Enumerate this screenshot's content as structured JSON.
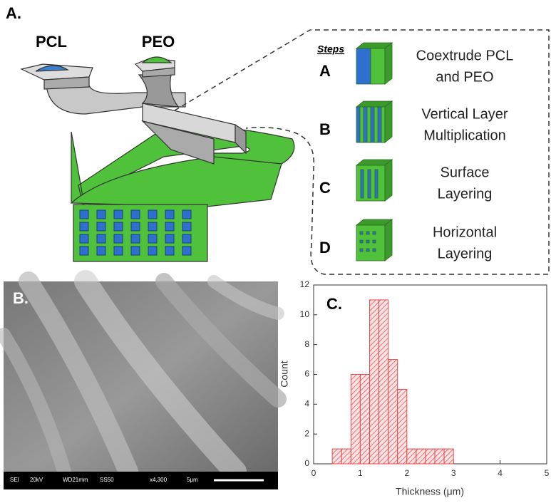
{
  "panel_a": {
    "label": "A.",
    "inputs": [
      "PCL",
      "PEO"
    ],
    "steps_heading": "Steps",
    "steps": [
      {
        "letter": "A",
        "lines": [
          "Coextrude PCL",
          "and PEO"
        ]
      },
      {
        "letter": "B",
        "lines": [
          "Vertical Layer",
          "Multiplication"
        ]
      },
      {
        "letter": "C",
        "lines": [
          "Surface",
          "Layering"
        ]
      },
      {
        "letter": "D",
        "lines": [
          "Horizontal",
          "Layering"
        ]
      }
    ]
  },
  "panel_b": {
    "label": "B.",
    "scale_bar": [
      "SEI",
      "20kV",
      "WD21mm",
      "SS50",
      "x4,300",
      "5μm"
    ]
  },
  "chart_data": {
    "type": "histogram",
    "label": "C.",
    "bins": [
      0.4,
      0.6,
      0.8,
      1.0,
      1.2,
      1.4,
      1.6,
      1.8,
      2.0,
      2.2,
      2.4,
      2.6,
      2.8,
      3.0
    ],
    "values": [
      1,
      1,
      6,
      6,
      11,
      11,
      7,
      5,
      1,
      1,
      1,
      1,
      1
    ],
    "color": "#e8474b",
    "xlim": [
      0,
      5
    ],
    "xticks": [
      0,
      1,
      2,
      3,
      4,
      5
    ],
    "ylim": [
      0,
      12
    ],
    "yticks": [
      0,
      2,
      4,
      6,
      8,
      10,
      12
    ],
    "x_label": "Thickness (μm)",
    "y_label": "Count"
  }
}
